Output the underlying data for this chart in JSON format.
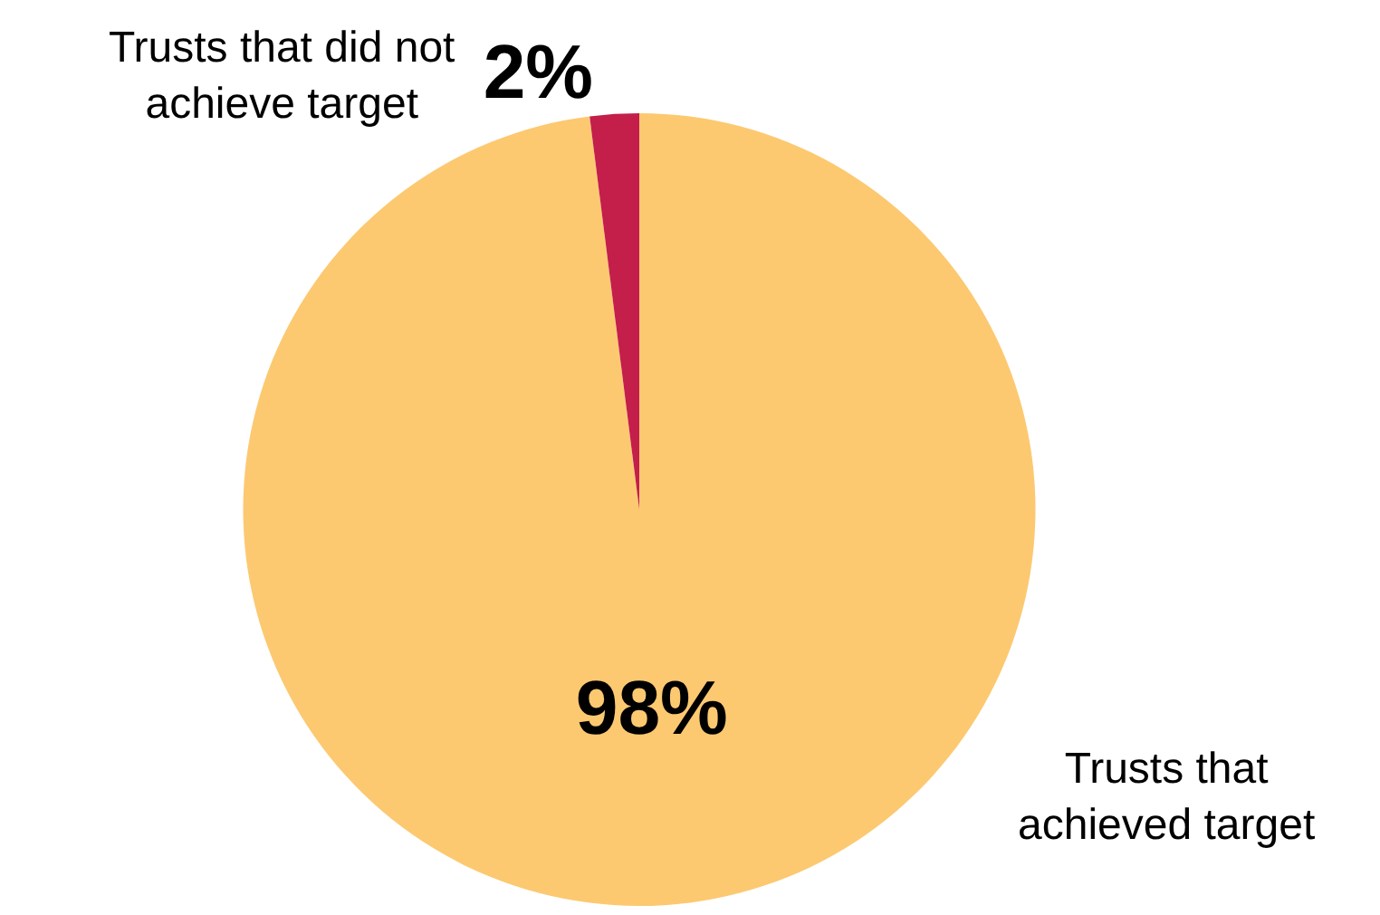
{
  "chart_data": {
    "type": "pie",
    "categories": [
      "Trusts that achieved target",
      "Trusts that did not achieve target"
    ],
    "values": [
      98,
      2
    ],
    "colors": [
      "#fcc971",
      "#c41e4a"
    ],
    "value_labels": [
      "98%",
      "2%"
    ]
  }
}
